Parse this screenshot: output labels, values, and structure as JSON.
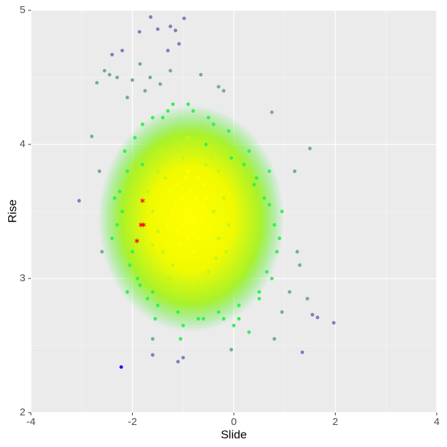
{
  "chart_data": {
    "type": "scatter",
    "x_label": "Slide",
    "y_label": "Rise",
    "xlim": [
      -4,
      4
    ],
    "ylim": [
      2,
      5
    ],
    "xticks": [
      -4,
      -2,
      0,
      2,
      4
    ],
    "yticks": [
      2,
      3,
      4,
      5
    ],
    "grid": true,
    "series": [
      {
        "color": "#ffff00",
        "marker": "dot",
        "x": [
          -1.2,
          -1.0,
          -0.8,
          -0.6,
          -0.9,
          -1.1,
          -0.7,
          -1.3,
          -0.5,
          -0.85,
          -1.05,
          -0.95,
          -0.75,
          -1.15,
          -0.65,
          -0.9,
          -1.25,
          -0.55,
          -1.0,
          -0.8,
          -0.7,
          -1.1,
          -0.95,
          -0.6
        ],
        "values": [
          3.5,
          3.6,
          3.45,
          3.55,
          3.3,
          3.7,
          3.75,
          3.4,
          3.35,
          3.65,
          3.25,
          3.5,
          3.6,
          3.55,
          3.45,
          3.8,
          3.65,
          3.6,
          3.4,
          3.2,
          3.3,
          3.35,
          3.75,
          3.7
        ]
      },
      {
        "color": "#c6f519",
        "marker": "dot",
        "x": [
          -1.6,
          -1.5,
          -1.4,
          -1.3,
          -0.4,
          -0.3,
          -0.2,
          -0.1,
          -1.7,
          -1.5,
          -0.3,
          -0.5,
          -1.1,
          -0.8,
          -1.0,
          -0.6,
          -1.2,
          -0.7,
          -1.45,
          -0.35,
          -0.9,
          -1.35,
          -0.45,
          -1.6,
          -0.15,
          -1.0,
          -0.55,
          -1.25
        ],
        "values": [
          3.5,
          3.8,
          3.2,
          3.0,
          3.5,
          3.3,
          3.6,
          3.4,
          3.65,
          3.35,
          3.8,
          3.05,
          3.95,
          3.98,
          2.95,
          4.0,
          3.1,
          2.95,
          3.95,
          3.15,
          4.05,
          3.75,
          3.9,
          3.25,
          3.2,
          3.9,
          3.85,
          3.0
        ]
      },
      {
        "color": "#3ded55",
        "marker": "dot",
        "x": [
          -2.2,
          -2.1,
          -2.0,
          -2.3,
          -1.9,
          -2.15,
          -2.25,
          -1.95,
          -2.05,
          -1.8,
          -1.7,
          -1.6,
          -1.5,
          -1.3,
          -1.1,
          -0.9,
          -0.7,
          -0.5,
          -0.3,
          -0.1,
          0.1,
          0.3,
          0.5,
          0.7,
          0.8,
          0.85,
          0.75,
          0.6,
          0.4,
          0.2,
          0.0,
          -0.2,
          -0.4,
          -0.6,
          -0.8,
          -1.0,
          -1.2,
          -1.4,
          -1.6,
          -1.8,
          0.9,
          0.95,
          0.7,
          0.5,
          -2.35,
          -2.4,
          -1.85,
          0.65,
          0.3,
          -0.05,
          -0.55,
          -1.05,
          -1.55,
          0.1,
          -2.1,
          0.45
        ],
        "values": [
          3.5,
          3.8,
          3.2,
          3.4,
          3.0,
          3.95,
          3.65,
          4.05,
          3.1,
          4.15,
          2.85,
          4.2,
          2.8,
          4.25,
          2.75,
          4.3,
          2.7,
          4.2,
          2.75,
          4.1,
          2.8,
          3.95,
          2.9,
          3.8,
          3.4,
          3.2,
          3.0,
          3.6,
          3.7,
          3.85,
          2.65,
          2.7,
          4.15,
          2.7,
          4.25,
          2.65,
          4.3,
          4.2,
          2.9,
          3.85,
          3.3,
          3.5,
          3.55,
          2.85,
          3.6,
          3.3,
          2.95,
          3.05,
          2.6,
          3.9,
          4.0,
          2.55,
          2.7,
          2.7,
          2.9,
          3.75
        ]
      },
      {
        "color": "#77ab96",
        "marker": "dot",
        "x": [
          -2.7,
          -2.55,
          -2.45,
          -2.6,
          -2.3,
          -2.0,
          -1.85,
          -1.65,
          -1.45,
          -1.25,
          -2.1,
          -1.75,
          -0.65,
          -0.3,
          -0.2,
          1.1,
          1.3,
          1.45,
          1.5,
          1.2,
          0.95,
          0.8,
          -2.8,
          -2.65,
          -1.6,
          0.75,
          1.25,
          -0.05
        ],
        "values": [
          4.46,
          4.55,
          4.52,
          3.2,
          4.5,
          4.48,
          4.6,
          4.5,
          4.45,
          4.55,
          4.35,
          4.4,
          4.52,
          4.43,
          4.4,
          2.9,
          3.1,
          2.85,
          3.97,
          3.8,
          2.75,
          2.55,
          4.06,
          3.8,
          2.55,
          4.24,
          3.2,
          2.47
        ]
      },
      {
        "color": "#7a80c0",
        "marker": "dot",
        "x": [
          -1.64,
          -0.98,
          -1.86,
          -1.5,
          -1.25,
          -1.15,
          -1.08,
          -1.3,
          -2.2,
          -2.4,
          -3.05,
          1.35,
          1.97,
          -1.6,
          -1.1,
          -1.0,
          1.65,
          1.55
        ],
        "values": [
          4.95,
          4.94,
          4.84,
          4.86,
          4.88,
          4.85,
          4.75,
          4.7,
          4.7,
          4.67,
          3.58,
          2.45,
          2.67,
          2.43,
          2.38,
          2.41,
          2.71,
          2.73
        ]
      },
      {
        "color": "#3300ff",
        "marker": "dot",
        "x": [
          -2.22
        ],
        "values": [
          2.34
        ]
      },
      {
        "color": "#ff0000",
        "marker": "asterisk",
        "x": [
          -1.8,
          -1.83,
          -1.78,
          -1.91
        ],
        "values": [
          3.58,
          3.4,
          3.4,
          3.28
        ]
      }
    ]
  }
}
